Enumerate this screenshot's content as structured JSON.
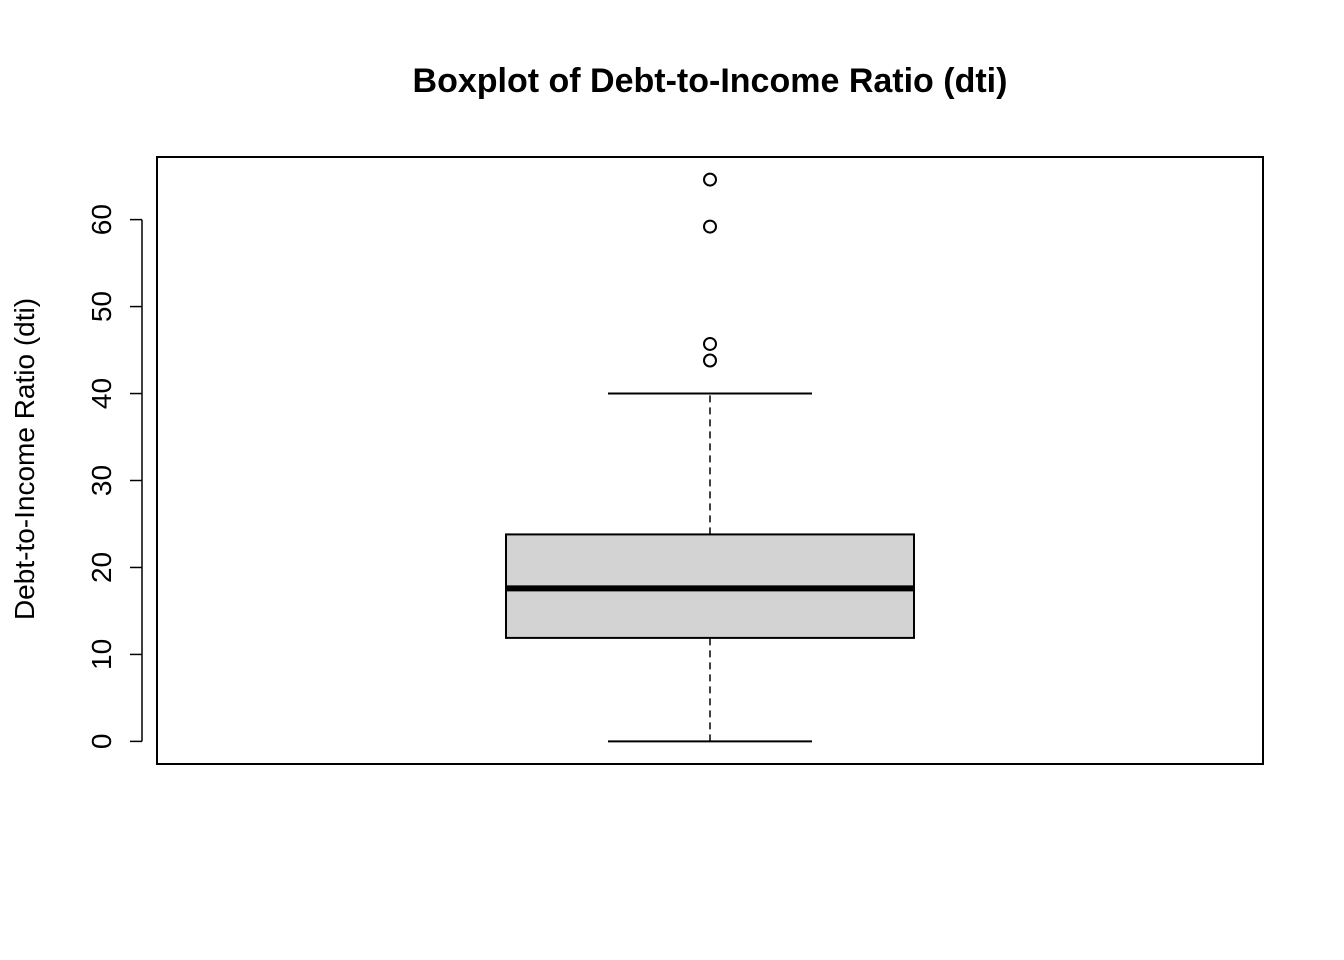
{
  "chart_data": {
    "type": "box",
    "title": "Boxplot of Debt-to-Income Ratio (dti)",
    "xlabel": "",
    "ylabel": "Debt-to-Income Ratio (dti)",
    "ylim": [
      -2.6,
      67.2
    ],
    "yticks": [
      0,
      10,
      20,
      30,
      40,
      50,
      60
    ],
    "ytick_labels": [
      "0",
      "10",
      "20",
      "30",
      "40",
      "50",
      "60"
    ],
    "grid": false,
    "legend": "none",
    "box": {
      "min": 0,
      "q1": 11.9,
      "median": 17.6,
      "q3": 23.8,
      "max": 40.0
    },
    "outliers": [
      43.8,
      45.7,
      59.2,
      64.6
    ],
    "colors": {
      "box_fill": "#d3d3d3",
      "stroke": "#000000",
      "background": "#ffffff"
    }
  }
}
